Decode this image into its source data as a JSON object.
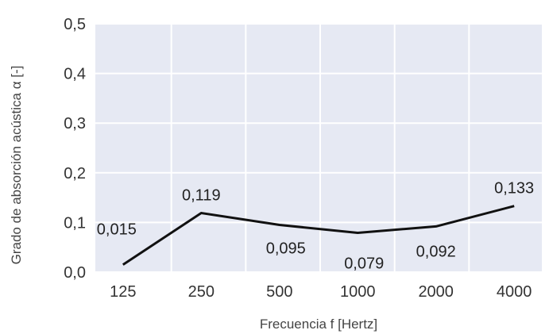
{
  "chart_data": {
    "type": "line",
    "title": "",
    "xlabel": "Frecuencia  f [Hertz]",
    "ylabel": "Grado de absorción acústica α [-]",
    "categories": [
      "125",
      "250",
      "500",
      "1000",
      "2000",
      "4000"
    ],
    "values": [
      0.015,
      0.119,
      0.095,
      0.079,
      0.092,
      0.133
    ],
    "value_labels": [
      "0,015",
      "0,119",
      "0,095",
      "0,079",
      "0,092",
      "0,133"
    ],
    "y_ticks": [
      "0,0",
      "0,1",
      "0,2",
      "0,3",
      "0,4",
      "0,5"
    ],
    "ylim": [
      0,
      0.5
    ],
    "grid": true,
    "legend": "none",
    "colors": {
      "plot_background": "#e6e9f3",
      "grid": "#ffffff",
      "line": "#111111"
    }
  }
}
